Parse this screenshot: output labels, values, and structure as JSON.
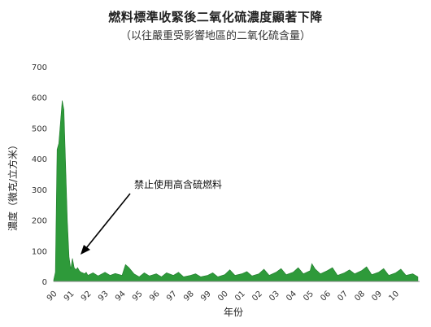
{
  "chart_data": {
    "type": "area",
    "title": "燃料標準收緊後二氧化硫濃度顯著下降",
    "subtitle": "（以往嚴重受影響地區的二氧化硫含量）",
    "xlabel": "年份",
    "ylabel": "濃度（微克/立方米）",
    "ylim": [
      0,
      700
    ],
    "yticks": [
      "0",
      "100",
      "200",
      "300",
      "400",
      "500",
      "600",
      "700"
    ],
    "xlim": [
      1990,
      2011.4
    ],
    "xticks": [
      "90",
      "91",
      "92",
      "93",
      "94",
      "95",
      "96",
      "97",
      "98",
      "99",
      "00",
      "01",
      "02",
      "03",
      "04",
      "05",
      "06",
      "07",
      "08",
      "09",
      "10"
    ],
    "grid": false,
    "series_color": "#2e9a3a",
    "annotation": "禁止使用高含硫燃料",
    "series": [
      {
        "x": [
          1990.0,
          1990.1,
          1990.2,
          1990.3,
          1990.4,
          1990.5,
          1990.6,
          1990.7,
          1990.8,
          1990.9,
          1991.0,
          1991.1,
          1991.2,
          1991.3,
          1991.4,
          1991.5,
          1991.6,
          1991.7,
          1991.8,
          1991.9,
          1992.0,
          1992.3,
          1992.6,
          1993.0,
          1993.3,
          1993.6,
          1994.0,
          1994.2,
          1994.4,
          1994.7,
          1995.0,
          1995.3,
          1995.6,
          1996.0,
          1996.3,
          1996.6,
          1997.0,
          1997.3,
          1997.6,
          1998.0,
          1998.3,
          1998.6,
          1999.0,
          1999.3,
          1999.6,
          2000.0,
          2000.3,
          2000.6,
          2001.0,
          2001.3,
          2001.6,
          2002.0,
          2002.3,
          2002.6,
          2003.0,
          2003.3,
          2003.6,
          2004.0,
          2004.3,
          2004.6,
          2005.0,
          2005.1,
          2005.3,
          2005.6,
          2006.0,
          2006.3,
          2006.6,
          2007.0,
          2007.3,
          2007.6,
          2008.0,
          2008.3,
          2008.6,
          2009.0,
          2009.3,
          2009.6,
          2010.0,
          2010.3,
          2010.6,
          2011.0,
          2011.3
        ],
        "y": [
          5,
          30,
          430,
          450,
          520,
          590,
          560,
          380,
          200,
          80,
          40,
          75,
          45,
          38,
          45,
          35,
          30,
          28,
          25,
          30,
          20,
          28,
          18,
          30,
          20,
          26,
          20,
          55,
          45,
          25,
          15,
          28,
          18,
          25,
          15,
          28,
          20,
          30,
          15,
          20,
          25,
          15,
          20,
          28,
          15,
          22,
          38,
          20,
          25,
          32,
          18,
          25,
          40,
          20,
          30,
          42,
          22,
          30,
          45,
          25,
          35,
          58,
          40,
          25,
          35,
          45,
          20,
          28,
          38,
          25,
          35,
          48,
          22,
          30,
          42,
          20,
          28,
          40,
          20,
          25,
          15
        ]
      }
    ]
  }
}
